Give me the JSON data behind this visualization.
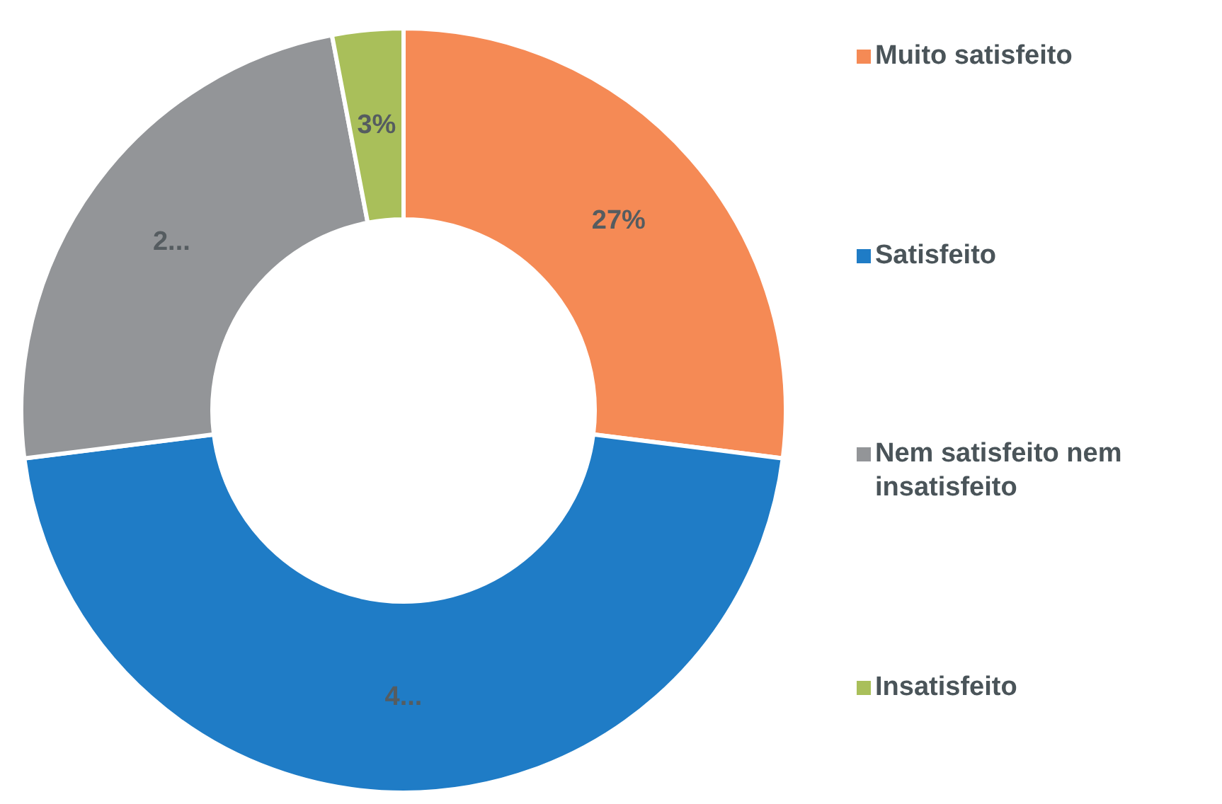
{
  "chart_data": {
    "type": "donut",
    "categories": [
      "Muito satisfeito",
      "Satisfeito",
      "Nem satisfeito nem insatisfeito",
      "Insatisfeito"
    ],
    "values": [
      27,
      46,
      24,
      3
    ],
    "colors": [
      "#f58a55",
      "#1f7cc6",
      "#939598",
      "#a9bf5a"
    ],
    "value_labels": [
      "27%",
      "4...",
      "2...",
      "3%"
    ],
    "legend": "right"
  }
}
